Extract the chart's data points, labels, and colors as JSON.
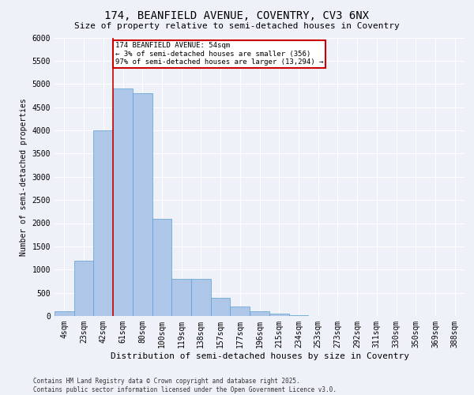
{
  "title_line1": "174, BEANFIELD AVENUE, COVENTRY, CV3 6NX",
  "title_line2": "Size of property relative to semi-detached houses in Coventry",
  "xlabel": "Distribution of semi-detached houses by size in Coventry",
  "ylabel": "Number of semi-detached properties",
  "annotation_title": "174 BEANFIELD AVENUE: 54sqm",
  "annotation_line2": "← 3% of semi-detached houses are smaller (356)",
  "annotation_line3": "97% of semi-detached houses are larger (13,294) →",
  "footer_line1": "Contains HM Land Registry data © Crown copyright and database right 2025.",
  "footer_line2": "Contains public sector information licensed under the Open Government Licence v3.0.",
  "categories": [
    "4sqm",
    "23sqm",
    "42sqm",
    "61sqm",
    "80sqm",
    "100sqm",
    "119sqm",
    "138sqm",
    "157sqm",
    "177sqm",
    "196sqm",
    "215sqm",
    "234sqm",
    "253sqm",
    "273sqm",
    "292sqm",
    "311sqm",
    "330sqm",
    "350sqm",
    "369sqm",
    "388sqm"
  ],
  "values": [
    100,
    1200,
    4000,
    4900,
    4800,
    2100,
    800,
    800,
    400,
    200,
    100,
    50,
    10,
    0,
    0,
    0,
    0,
    0,
    0,
    0,
    0
  ],
  "bar_color": "#aec6e8",
  "bar_edge_color": "#5a9fd4",
  "bar_edge_width": 0.5,
  "redline_index": 2.5,
  "ylim": [
    0,
    6000
  ],
  "yticks": [
    0,
    500,
    1000,
    1500,
    2000,
    2500,
    3000,
    3500,
    4000,
    4500,
    5000,
    5500,
    6000
  ],
  "background_color": "#eef2f8",
  "plot_background": "#eef2f8",
  "grid_color": "#ffffff",
  "annotation_box_color": "#ffffff",
  "annotation_box_edge": "#cc0000",
  "red_line_color": "#cc0000",
  "title1_fontsize": 10,
  "title2_fontsize": 8,
  "xlabel_fontsize": 8,
  "ylabel_fontsize": 7,
  "tick_fontsize": 7,
  "footer_fontsize": 5.5
}
